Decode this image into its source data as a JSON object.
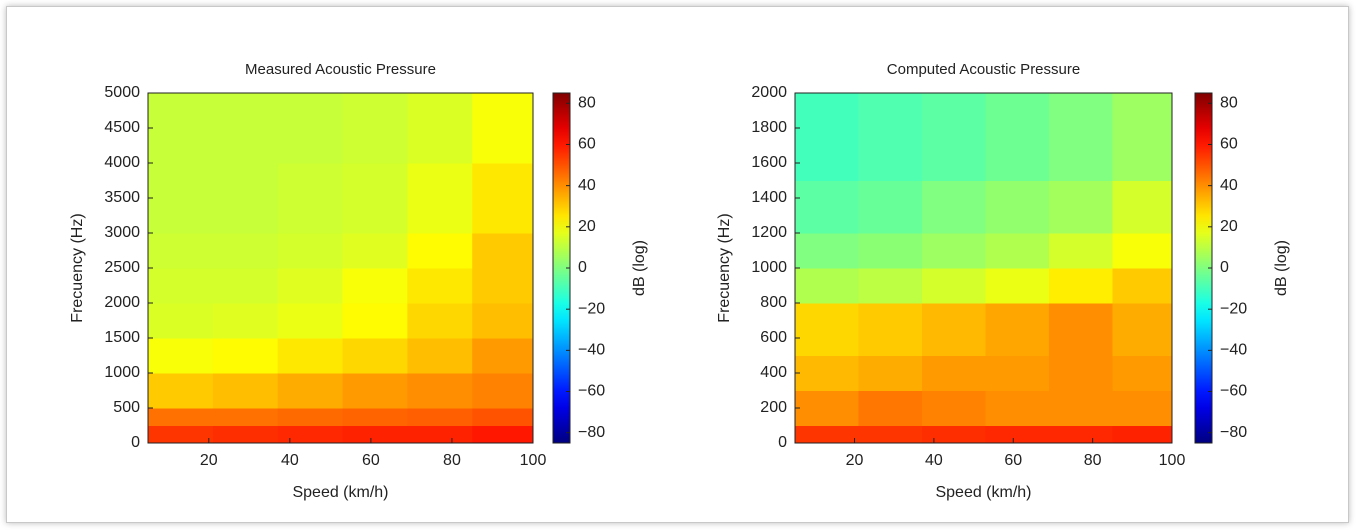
{
  "chart_data": [
    {
      "type": "heatmap",
      "title": "Measured Acoustic Pressure",
      "x_label": "Speed (km/h)",
      "y_label": "Frecuency (Hz)",
      "colorbar_label": "dB (log)",
      "xlim": [
        5,
        100
      ],
      "xticks": [
        20,
        40,
        60,
        80,
        100
      ],
      "ylim": [
        0,
        5000
      ],
      "yticks": [
        0,
        500,
        1000,
        1500,
        2000,
        2500,
        3000,
        3500,
        4000,
        4500,
        5000
      ],
      "clim": [
        -85,
        85
      ],
      "cticks": [
        {
          "value": -80,
          "label": "−80"
        },
        {
          "value": -60,
          "label": "−60"
        },
        {
          "value": -40,
          "label": "−40"
        },
        {
          "value": -20,
          "label": "−20"
        },
        0,
        20,
        40,
        60,
        80
      ],
      "x_bins": [
        5,
        21,
        37,
        53,
        69,
        85,
        100
      ],
      "y_bins": [
        0,
        250,
        500,
        1000,
        1500,
        2000,
        2500,
        3000,
        4000,
        5000
      ],
      "values": [
        [
          55,
          56,
          57,
          58,
          58,
          60
        ],
        [
          45,
          45,
          46,
          47,
          48,
          50
        ],
        [
          30,
          32,
          35,
          38,
          40,
          42
        ],
        [
          20,
          22,
          25,
          28,
          32,
          38
        ],
        [
          15,
          16,
          18,
          22,
          28,
          32
        ],
        [
          14,
          14,
          16,
          20,
          25,
          30
        ],
        [
          13,
          13,
          14,
          16,
          22,
          30
        ],
        [
          12,
          12,
          13,
          14,
          18,
          25
        ],
        [
          12,
          12,
          12,
          13,
          15,
          20
        ]
      ]
    },
    {
      "type": "heatmap",
      "title": "Computed Acoustic Pressure",
      "x_label": "Speed (km/h)",
      "y_label": "Frecuency (Hz)",
      "colorbar_label": "dB (log)",
      "xlim": [
        5,
        100
      ],
      "xticks": [
        20,
        40,
        60,
        80,
        100
      ],
      "ylim": [
        0,
        2000
      ],
      "yticks": [
        0,
        200,
        400,
        600,
        800,
        1000,
        1200,
        1400,
        1600,
        1800,
        2000
      ],
      "clim": [
        -85,
        85
      ],
      "cticks": [
        {
          "value": -80,
          "label": "−80"
        },
        {
          "value": -60,
          "label": "−60"
        },
        {
          "value": -40,
          "label": "−40"
        },
        {
          "value": -20,
          "label": "−20"
        },
        0,
        20,
        40,
        60,
        80
      ],
      "x_bins": [
        5,
        21,
        37,
        53,
        69,
        85,
        100
      ],
      "y_bins": [
        0,
        100,
        300,
        500,
        800,
        1000,
        1200,
        1500,
        2000
      ],
      "values": [
        [
          55,
          55,
          56,
          57,
          57,
          58
        ],
        [
          40,
          44,
          42,
          40,
          40,
          40
        ],
        [
          33,
          35,
          38,
          38,
          40,
          38
        ],
        [
          28,
          30,
          33,
          36,
          40,
          35
        ],
        [
          8,
          10,
          14,
          18,
          24,
          30
        ],
        [
          0,
          2,
          5,
          8,
          14,
          20
        ],
        [
          -6,
          -4,
          0,
          3,
          6,
          14
        ],
        [
          -10,
          -8,
          -6,
          -3,
          0,
          5
        ]
      ]
    }
  ]
}
